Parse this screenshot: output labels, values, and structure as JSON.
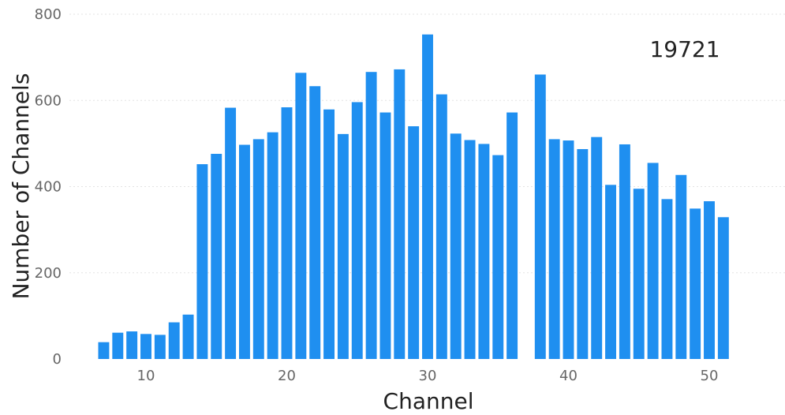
{
  "chart_data": {
    "type": "bar",
    "title": "",
    "xlabel": "Channel",
    "ylabel": "Number of Channels",
    "annotation": "19721",
    "xlim": [
      5,
      53
    ],
    "ylim": [
      0,
      800
    ],
    "grid": true,
    "x_ticks": [
      10,
      20,
      30,
      40,
      50
    ],
    "y_ticks": [
      0,
      200,
      400,
      600,
      800
    ],
    "x_tick_labels": [
      "10",
      "20",
      "30",
      "40",
      "50"
    ],
    "y_tick_labels": [
      "0",
      "200",
      "400",
      "600",
      "800"
    ],
    "x": [
      7,
      8,
      9,
      10,
      11,
      12,
      13,
      14,
      15,
      16,
      17,
      18,
      19,
      20,
      21,
      22,
      23,
      24,
      25,
      26,
      27,
      28,
      29,
      30,
      31,
      32,
      33,
      34,
      35,
      36,
      38,
      39,
      40,
      41,
      42,
      43,
      44,
      45,
      46,
      47,
      48,
      49,
      50,
      51
    ],
    "values": [
      39,
      61,
      64,
      58,
      56,
      85,
      103,
      452,
      476,
      583,
      497,
      510,
      526,
      584,
      664,
      633,
      579,
      522,
      596,
      666,
      572,
      672,
      540,
      753,
      614,
      523,
      508,
      499,
      473,
      572,
      660,
      510,
      507,
      487,
      515,
      404,
      498,
      395,
      455,
      371,
      427,
      349,
      366,
      329
    ],
    "color": "#1f8ff0"
  }
}
